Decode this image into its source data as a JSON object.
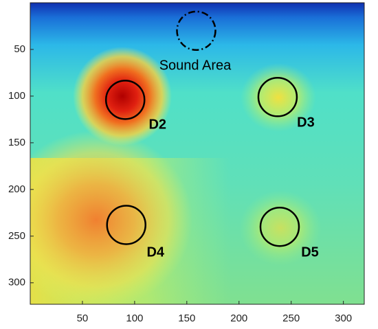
{
  "chart_data": {
    "type": "heatmap",
    "xlim": [
      0,
      320
    ],
    "ylim": [
      0,
      323
    ],
    "y_reversed": true,
    "xticks": [
      50,
      100,
      150,
      200,
      250,
      300
    ],
    "yticks": [
      50,
      100,
      150,
      200,
      250,
      300
    ],
    "circles": [
      {
        "x": 159,
        "y": 30,
        "line": "dash-dot"
      },
      {
        "x": 91,
        "y": 104,
        "line": "solid"
      },
      {
        "x": 237,
        "y": 101,
        "line": "solid"
      },
      {
        "x": 92,
        "y": 238,
        "line": "solid"
      },
      {
        "x": 239,
        "y": 240,
        "line": "solid"
      }
    ],
    "annotations": [
      {
        "text": "Sound Area",
        "x": 158,
        "y": 68,
        "bold": false
      },
      {
        "text": "D2",
        "x": 122,
        "y": 131,
        "bold": true
      },
      {
        "text": "D3",
        "x": 264,
        "y": 129,
        "bold": true
      },
      {
        "text": "D4",
        "x": 120,
        "y": 268,
        "bold": true
      },
      {
        "text": "D5",
        "x": 268,
        "y": 268,
        "bold": true
      }
    ]
  }
}
